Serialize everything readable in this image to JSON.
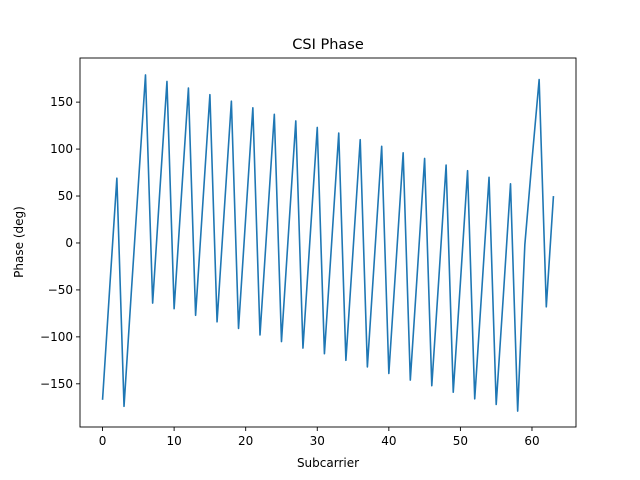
{
  "chart_data": {
    "type": "line",
    "title": "CSI Phase",
    "xlabel": "Subcarrier",
    "ylabel": "Phase (deg)",
    "xlim": [
      -3.15,
      66.15
    ],
    "ylim": [
      -196,
      197
    ],
    "xticks": [
      0,
      10,
      20,
      30,
      40,
      50,
      60
    ],
    "yticks": [
      -150,
      -100,
      -50,
      0,
      50,
      100,
      150
    ],
    "grid": false,
    "series": [
      {
        "color": "#1f77b4",
        "x": [
          0,
          1,
          2,
          3,
          4,
          5,
          6,
          7,
          8,
          9,
          10,
          11,
          12,
          13,
          14,
          15,
          16,
          17,
          18,
          19,
          20,
          21,
          22,
          23,
          24,
          25,
          26,
          27,
          28,
          29,
          30,
          31,
          32,
          33,
          34,
          35,
          36,
          37,
          38,
          39,
          40,
          41,
          42,
          43,
          44,
          45,
          46,
          47,
          48,
          49,
          50,
          51,
          52,
          53,
          54,
          55,
          56,
          57,
          58,
          59,
          60,
          61,
          62,
          63
        ],
        "y": [
          -167,
          -48,
          69,
          -174,
          -55,
          62,
          179,
          -64,
          55,
          172,
          -70,
          48,
          165,
          -77,
          41,
          158,
          -84,
          34,
          151,
          -91,
          27,
          144,
          -98,
          20,
          137,
          -105,
          13,
          130,
          -112,
          6,
          123,
          -118,
          -1,
          117,
          -125,
          -8,
          110,
          -132,
          -15,
          103,
          -139,
          -22,
          96,
          -146,
          -29,
          90,
          -152,
          -36,
          83,
          -159,
          -42,
          77,
          -166,
          -49,
          70,
          -172,
          -56,
          63,
          -179,
          -2,
          88,
          174,
          -68,
          50
        ]
      }
    ]
  }
}
